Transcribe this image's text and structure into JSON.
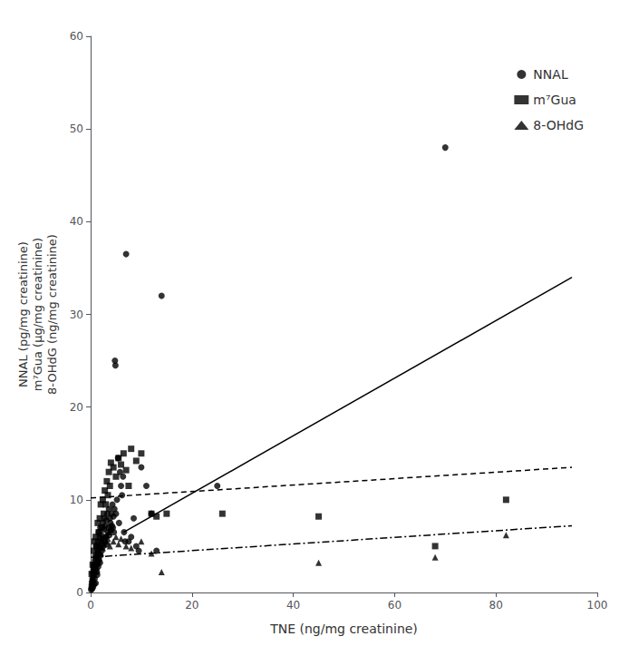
{
  "chart_data": {
    "type": "scatter",
    "xlabel": "TNE (ng/mg creatinine)",
    "ylabel": "NNAL (pg/mg creatinine)\nm⁷Gua (μg/mg creatinine)\n8-OHdG (ng/mg creatinine)",
    "xlim": [
      0,
      100
    ],
    "ylim": [
      0,
      60
    ],
    "xticks": [
      0,
      20,
      40,
      60,
      80,
      100
    ],
    "yticks": [
      0,
      10,
      20,
      30,
      40,
      50,
      60
    ],
    "grid": false,
    "legend": "upper right",
    "color": "#000000",
    "series": [
      {
        "name": "NNAL",
        "marker": "circle",
        "line_style": "solid",
        "x": [
          0.1,
          0.15,
          0.2,
          0.25,
          0.3,
          0.35,
          0.4,
          0.45,
          0.5,
          0.55,
          0.6,
          0.65,
          0.7,
          0.75,
          0.8,
          0.85,
          0.9,
          0.95,
          1.0,
          1.05,
          1.1,
          1.15,
          1.2,
          1.25,
          1.3,
          1.35,
          1.4,
          1.45,
          1.5,
          1.55,
          1.6,
          1.65,
          1.7,
          1.75,
          1.8,
          1.85,
          1.9,
          1.95,
          2.0,
          2.1,
          2.2,
          2.3,
          2.4,
          2.5,
          2.6,
          2.7,
          2.8,
          2.9,
          3.0,
          3.1,
          3.2,
          3.3,
          3.4,
          3.5,
          3.6,
          3.7,
          3.8,
          3.9,
          4.0,
          4.1,
          4.2,
          4.3,
          4.4,
          4.5,
          4.6,
          4.7,
          4.8,
          4.9,
          5.0,
          5.2,
          5.4,
          5.6,
          5.8,
          6.0,
          6.2,
          6.4,
          6.6,
          6.8,
          7.0,
          7.5,
          8.0,
          8.5,
          9.0,
          9.5,
          10.0,
          11.0,
          12.0,
          13.0,
          14.0,
          25.0,
          70.0
        ],
        "values": [
          0.3,
          0.5,
          0.8,
          1.0,
          0.4,
          1.5,
          2.0,
          1.2,
          0.6,
          2.5,
          1.8,
          3.0,
          0.9,
          2.2,
          1.5,
          3.5,
          2.8,
          4.0,
          1.0,
          5.0,
          2.5,
          3.8,
          3.0,
          2.2,
          1.9,
          4.5,
          3.2,
          5.5,
          2.8,
          4.2,
          6.5,
          3.5,
          5.0,
          4.8,
          6.0,
          3.2,
          7.0,
          4.0,
          5.5,
          6.2,
          4.5,
          5.8,
          7.5,
          5.0,
          6.8,
          8.0,
          5.5,
          7.2,
          6.0,
          7.8,
          5.2,
          8.5,
          6.5,
          7.0,
          9.0,
          6.2,
          8.0,
          7.5,
          6.8,
          8.5,
          7.2,
          9.5,
          7.0,
          8.2,
          6.5,
          9.0,
          25.0,
          24.5,
          8.5,
          10.0,
          14.5,
          7.5,
          13.0,
          11.5,
          10.5,
          12.5,
          6.5,
          5.5,
          36.5,
          5.5,
          6.0,
          8.0,
          5.0,
          4.5,
          13.5,
          11.5,
          8.5,
          4.5,
          32.0,
          11.5,
          48.0
        ],
        "fit_x": [
          6.5,
          95.0
        ],
        "fit_values": [
          6.5,
          34.0
        ]
      },
      {
        "name": "m⁷Gua",
        "marker": "square",
        "line_style": "dashed",
        "x": [
          0.2,
          0.4,
          0.6,
          0.8,
          1.0,
          1.2,
          1.4,
          1.6,
          1.8,
          2.0,
          2.2,
          2.4,
          2.6,
          2.8,
          3.0,
          3.2,
          3.4,
          3.6,
          3.8,
          4.0,
          4.5,
          5.0,
          5.5,
          6.0,
          6.5,
          7.0,
          7.5,
          8.0,
          9.0,
          10.0,
          12.0,
          13.0,
          15.0,
          26.0,
          45.0,
          68.0,
          82.0
        ],
        "values": [
          2.0,
          3.0,
          4.5,
          5.5,
          6.0,
          5.0,
          7.5,
          6.5,
          8.0,
          9.5,
          7.0,
          10.0,
          8.5,
          11.0,
          9.5,
          12.0,
          10.5,
          13.0,
          11.5,
          14.0,
          13.5,
          12.5,
          14.5,
          13.8,
          15.0,
          13.2,
          11.5,
          15.5,
          14.2,
          15.0,
          8.5,
          8.2,
          8.5,
          8.5,
          8.2,
          5.0,
          10.0
        ],
        "fit_x": [
          0.0,
          95.0
        ],
        "fit_values": [
          10.2,
          13.5
        ]
      },
      {
        "name": "8-OHdG",
        "marker": "triangle",
        "line_style": "dashdot",
        "x": [
          0.2,
          0.4,
          0.6,
          0.8,
          1.0,
          1.2,
          1.4,
          1.6,
          1.8,
          2.0,
          2.2,
          2.4,
          2.6,
          2.8,
          3.0,
          3.2,
          3.4,
          3.6,
          3.8,
          4.0,
          4.5,
          5.0,
          5.5,
          6.0,
          7.0,
          8.0,
          10.0,
          12.0,
          14.0,
          45.0,
          68.0,
          82.0
        ],
        "values": [
          1.5,
          2.5,
          3.0,
          3.5,
          4.0,
          3.2,
          4.5,
          3.8,
          5.0,
          4.2,
          5.5,
          4.8,
          5.2,
          6.0,
          5.5,
          6.2,
          5.8,
          6.5,
          5.0,
          6.8,
          5.5,
          6.0,
          5.2,
          5.8,
          5.0,
          4.8,
          5.5,
          4.2,
          2.2,
          3.2,
          3.8,
          6.2
        ],
        "fit_x": [
          0.0,
          95.0
        ],
        "fit_values": [
          3.8,
          7.2
        ]
      }
    ]
  }
}
